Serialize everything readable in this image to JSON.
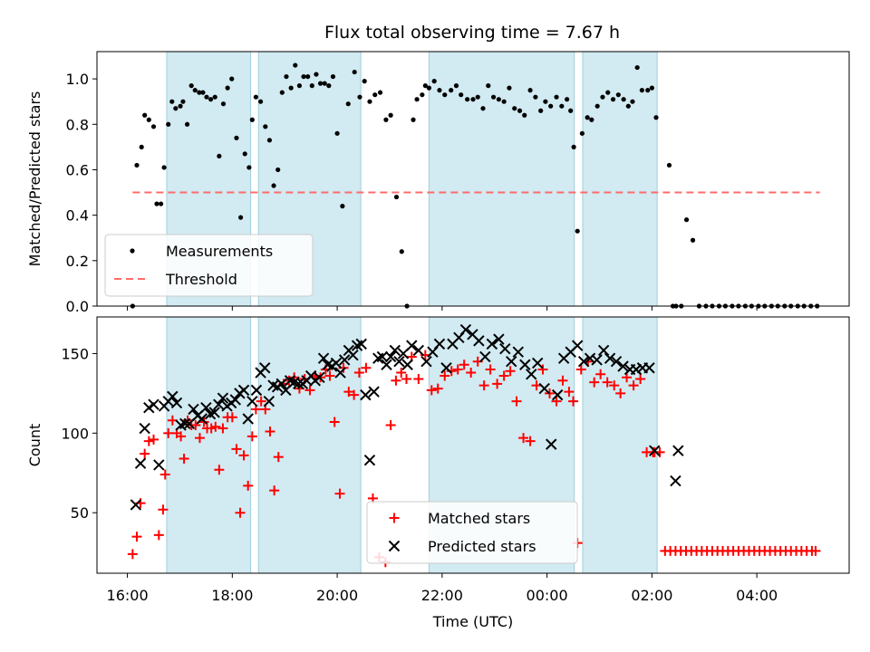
{
  "title": "Flux total observing time = 7.67 h",
  "colors": {
    "band": "#add8e6",
    "measure": "#000000",
    "threshold": "#ff6b6b",
    "matched": "#ff0000",
    "predicted": "#000000"
  },
  "chart_data": [
    {
      "type": "scatter",
      "ylabel": "Matched/Predicted stars",
      "xlim": [
        -0.58,
        13.76
      ],
      "ylim": [
        0,
        1.12
      ],
      "yticks": [
        0.0,
        0.2,
        0.4,
        0.6,
        0.8,
        1.0
      ],
      "ytick_labels": [
        "0.0",
        "0.2",
        "0.4",
        "0.6",
        "0.8",
        "1.0"
      ],
      "legend": [
        "Measurements",
        "Threshold"
      ],
      "legend_loc": "lower left",
      "threshold": {
        "name": "Threshold",
        "y": 0.5,
        "x": [
          0.1,
          13.2
        ]
      },
      "shaded_intervals": [
        [
          0.75,
          2.35
        ],
        [
          2.5,
          4.45
        ],
        [
          5.75,
          8.52
        ],
        [
          8.68,
          10.1
        ]
      ],
      "series": [
        {
          "name": "Measurements",
          "x": [
            0.1,
            0.18,
            0.27,
            0.33,
            0.41,
            0.5,
            0.56,
            0.64,
            0.7,
            0.78,
            0.85,
            0.92,
            1.01,
            1.06,
            1.14,
            1.22,
            1.29,
            1.37,
            1.44,
            1.51,
            1.59,
            1.67,
            1.75,
            1.83,
            1.91,
            1.99,
            2.08,
            2.16,
            2.24,
            2.32,
            2.38,
            2.45,
            2.54,
            2.63,
            2.71,
            2.79,
            2.87,
            2.95,
            3.03,
            3.12,
            3.2,
            3.28,
            3.36,
            3.44,
            3.52,
            3.6,
            3.68,
            3.76,
            3.84,
            3.92,
            4.0,
            4.1,
            4.21,
            4.33,
            4.43,
            4.52,
            4.62,
            4.72,
            4.82,
            4.93,
            5.02,
            5.13,
            5.23,
            5.33,
            5.45,
            5.52,
            5.62,
            5.68,
            5.75,
            5.85,
            5.95,
            6.05,
            6.17,
            6.27,
            6.36,
            6.48,
            6.59,
            6.68,
            6.78,
            6.88,
            6.98,
            7.08,
            7.18,
            7.28,
            7.38,
            7.48,
            7.57,
            7.68,
            7.78,
            7.88,
            7.97,
            8.07,
            8.18,
            8.28,
            8.38,
            8.45,
            8.51,
            8.58,
            8.67,
            8.77,
            8.85,
            8.96,
            9.06,
            9.16,
            9.26,
            9.36,
            9.46,
            9.55,
            9.63,
            9.72,
            9.81,
            9.92,
            10.0,
            10.08,
            10.33,
            10.4,
            10.46,
            10.56,
            10.66,
            10.78,
            10.9,
            11.03,
            11.15,
            11.28,
            11.4,
            11.53,
            11.65,
            11.78,
            11.9,
            12.03,
            12.15,
            12.28,
            12.4,
            12.53,
            12.65,
            12.78,
            12.9,
            13.03,
            13.15
          ],
          "y": [
            0.0,
            0.62,
            0.7,
            0.84,
            0.82,
            0.79,
            0.45,
            0.45,
            0.61,
            0.8,
            0.9,
            0.87,
            0.88,
            0.9,
            0.8,
            0.97,
            0.95,
            0.94,
            0.94,
            0.92,
            0.91,
            0.92,
            0.66,
            0.89,
            0.96,
            1.0,
            0.74,
            0.39,
            0.67,
            0.61,
            0.82,
            0.92,
            0.9,
            0.79,
            0.73,
            0.53,
            0.6,
            0.94,
            1.01,
            0.96,
            1.06,
            0.97,
            1.01,
            1.01,
            0.97,
            1.02,
            0.98,
            0.98,
            0.97,
            1.01,
            0.76,
            0.44,
            0.89,
            1.03,
            0.92,
            0.99,
            0.9,
            0.93,
            0.94,
            0.82,
            0.84,
            0.48,
            0.24,
            0.0,
            0.82,
            0.91,
            0.93,
            0.97,
            0.96,
            0.99,
            0.95,
            0.93,
            0.95,
            0.97,
            0.93,
            0.91,
            0.91,
            0.92,
            0.87,
            0.97,
            0.92,
            0.91,
            0.9,
            0.96,
            0.87,
            0.86,
            0.84,
            0.95,
            0.92,
            0.86,
            0.9,
            0.88,
            0.92,
            0.88,
            0.91,
            0.86,
            0.7,
            0.33,
            0.76,
            0.83,
            0.82,
            0.88,
            0.92,
            0.94,
            0.91,
            0.93,
            0.91,
            0.88,
            0.9,
            1.05,
            0.95,
            0.95,
            0.96,
            0.83,
            0.62,
            0.0,
            0.0,
            0.0,
            0.38,
            0.29,
            0.0,
            0.0,
            0.0,
            0.0,
            0.0,
            0.0,
            0.0,
            0.0,
            0.0,
            0.0,
            0.0,
            0.0,
            0.0,
            0.0,
            0.0,
            0.0,
            0.0,
            0.0,
            0.0
          ]
        }
      ]
    },
    {
      "type": "scatter",
      "xlabel": "Time (UTC)",
      "ylabel": "Count",
      "xlim": [
        -0.58,
        13.76
      ],
      "ylim": [
        12,
        173
      ],
      "yticks": [
        50,
        100,
        150
      ],
      "ytick_labels": [
        "50",
        "100",
        "150"
      ],
      "xticks": [
        0,
        2,
        4,
        6,
        8,
        10,
        12
      ],
      "xtick_labels": [
        "16:00",
        "18:00",
        "20:00",
        "22:00",
        "00:00",
        "02:00",
        "04:00"
      ],
      "legend": [
        "Matched stars",
        "Predicted stars"
      ],
      "legend_loc": "lower center",
      "shaded_intervals": [
        [
          0.75,
          2.35
        ],
        [
          2.5,
          4.45
        ],
        [
          5.75,
          8.52
        ],
        [
          8.68,
          10.1
        ]
      ],
      "series": [
        {
          "name": "Matched stars",
          "x": [
            0.1,
            0.18,
            0.25,
            0.33,
            0.41,
            0.5,
            0.6,
            0.68,
            0.72,
            0.78,
            0.86,
            0.94,
            1.02,
            1.08,
            1.15,
            1.22,
            1.3,
            1.38,
            1.46,
            1.52,
            1.6,
            1.68,
            1.75,
            1.82,
            1.91,
            2.0,
            2.08,
            2.15,
            2.22,
            2.3,
            2.38,
            2.45,
            2.55,
            2.63,
            2.72,
            2.8,
            2.88,
            2.98,
            3.08,
            3.18,
            3.28,
            3.38,
            3.48,
            3.58,
            3.68,
            3.78,
            3.86,
            3.95,
            4.05,
            4.12,
            4.22,
            4.32,
            4.42,
            4.55,
            4.68,
            4.8,
            4.92,
            5.02,
            5.12,
            5.22,
            5.32,
            5.42,
            5.55,
            5.68,
            5.8,
            5.92,
            6.05,
            6.18,
            6.3,
            6.42,
            6.55,
            6.68,
            6.8,
            6.92,
            7.05,
            7.18,
            7.3,
            7.42,
            7.55,
            7.68,
            7.8,
            7.92,
            8.05,
            8.18,
            8.3,
            8.42,
            8.5,
            8.58,
            8.65,
            8.78,
            8.9,
            9.02,
            9.15,
            9.28,
            9.4,
            9.52,
            9.65,
            9.78,
            9.9,
            10.02,
            10.05,
            10.15,
            10.25,
            10.35,
            10.45,
            10.55,
            10.65,
            10.75,
            10.85,
            10.95,
            11.05,
            11.15,
            11.25,
            11.35,
            11.45,
            11.55,
            11.65,
            11.75,
            11.85,
            11.95,
            12.05,
            12.15,
            12.25,
            12.35,
            12.45,
            12.55,
            12.65,
            12.75,
            12.85,
            12.95,
            13.05,
            13.12
          ],
          "y": [
            24,
            35,
            56,
            87,
            95,
            96,
            36,
            52,
            74,
            100,
            108,
            100,
            98,
            84,
            108,
            105,
            105,
            97,
            107,
            103,
            103,
            104,
            77,
            103,
            110,
            110,
            90,
            50,
            86,
            67,
            98,
            115,
            120,
            115,
            101,
            64,
            85,
            131,
            133,
            135,
            128,
            134,
            127,
            136,
            135,
            140,
            136,
            107,
            62,
            141,
            126,
            124,
            138,
            141,
            59,
            22,
            19,
            105,
            133,
            138,
            134,
            148,
            134,
            149,
            127,
            128,
            136,
            139,
            140,
            143,
            138,
            145,
            130,
            140,
            131,
            136,
            139,
            120,
            97,
            95,
            130,
            140,
            125,
            120,
            133,
            126,
            120,
            31,
            140,
            145,
            132,
            137,
            132,
            130,
            125,
            135,
            130,
            134,
            88,
            88,
            88,
            88,
            26,
            26,
            26,
            26,
            26,
            26,
            26,
            26,
            26,
            26,
            26,
            26,
            26,
            26,
            26,
            26,
            26,
            26,
            26,
            26,
            26,
            26,
            26,
            26,
            26,
            26,
            26,
            26,
            26,
            26
          ]
        },
        {
          "name": "Predicted stars",
          "x": [
            0.16,
            0.25,
            0.33,
            0.41,
            0.5,
            0.6,
            0.7,
            0.78,
            0.86,
            0.94,
            1.02,
            1.1,
            1.18,
            1.26,
            1.34,
            1.42,
            1.5,
            1.58,
            1.66,
            1.74,
            1.82,
            1.9,
            1.98,
            2.06,
            2.14,
            2.22,
            2.3,
            2.38,
            2.46,
            2.54,
            2.62,
            2.7,
            2.78,
            2.86,
            2.94,
            3.02,
            3.1,
            3.18,
            3.26,
            3.34,
            3.42,
            3.5,
            3.58,
            3.66,
            3.74,
            3.82,
            3.9,
            3.98,
            4.06,
            4.14,
            4.22,
            4.3,
            4.38,
            4.46,
            4.54,
            4.62,
            4.7,
            4.78,
            4.86,
            4.94,
            5.02,
            5.1,
            5.18,
            5.26,
            5.34,
            5.42,
            5.55,
            5.7,
            5.82,
            5.95,
            6.08,
            6.2,
            6.32,
            6.45,
            6.58,
            6.7,
            6.82,
            6.95,
            7.08,
            7.2,
            7.32,
            7.45,
            7.58,
            7.7,
            7.82,
            7.95,
            8.08,
            8.2,
            8.32,
            8.45,
            8.58,
            8.7,
            8.82,
            8.95,
            9.08,
            9.2,
            9.32,
            9.45,
            9.58,
            9.7,
            9.82,
            9.95,
            10.05,
            10.45,
            10.5
          ],
          "y": [
            55,
            81,
            103,
            116,
            118,
            80,
            117,
            120,
            123,
            119,
            105,
            106,
            106,
            115,
            111,
            109,
            116,
            112,
            113,
            118,
            122,
            117,
            119,
            121,
            125,
            127,
            109,
            120,
            127,
            138,
            141,
            120,
            130,
            129,
            131,
            127,
            133,
            132,
            131,
            131,
            133,
            136,
            133,
            135,
            147,
            143,
            142,
            144,
            138,
            146,
            152,
            149,
            155,
            156,
            124,
            83,
            126,
            147,
            148,
            143,
            148,
            152,
            145,
            150,
            143,
            155,
            152,
            145,
            151,
            156,
            141,
            156,
            160,
            165,
            162,
            158,
            148,
            156,
            159,
            153,
            145,
            151,
            143,
            137,
            144,
            128,
            93,
            124,
            147,
            151,
            155,
            145,
            147,
            146,
            152,
            147,
            145,
            142,
            140,
            140,
            141,
            141,
            89,
            70,
            89
          ]
        }
      ]
    }
  ]
}
